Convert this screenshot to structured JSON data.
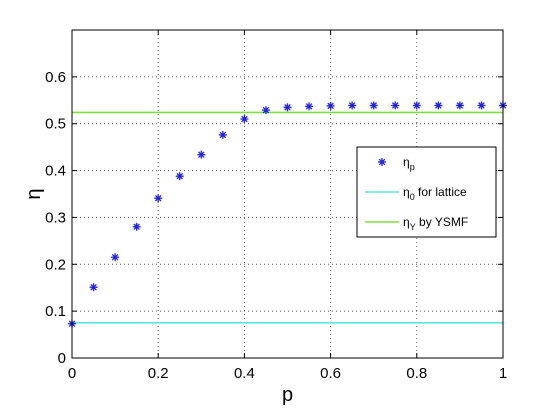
{
  "chart_data": {
    "type": "scatter",
    "xlabel": "p",
    "ylabel": "η",
    "xlim": [
      0,
      1
    ],
    "ylim": [
      0,
      0.7
    ],
    "xticks": [
      "0",
      "0.2",
      "0.4",
      "0.6",
      "0.8",
      "1"
    ],
    "yticks": [
      "0",
      "0.1",
      "0.2",
      "0.3",
      "0.4",
      "0.5",
      "0.6"
    ],
    "grid": true,
    "legend_position": "right",
    "series": [
      {
        "name_main": "η",
        "name_sub": "p",
        "name_rest": "",
        "style": "markers",
        "marker": "asterisk",
        "color": "#1f1fe6",
        "x": [
          0,
          0.05,
          0.1,
          0.15,
          0.2,
          0.25,
          0.3,
          0.35,
          0.4,
          0.45,
          0.5,
          0.55,
          0.6,
          0.65,
          0.7,
          0.75,
          0.8,
          0.85,
          0.9,
          0.95,
          1.0
        ],
        "y": [
          0.073,
          0.151,
          0.215,
          0.28,
          0.341,
          0.388,
          0.434,
          0.476,
          0.51,
          0.529,
          0.535,
          0.537,
          0.538,
          0.539,
          0.539,
          0.539,
          0.539,
          0.539,
          0.539,
          0.539,
          0.539
        ]
      },
      {
        "name_main": "η",
        "name_sub": "0",
        "name_rest": " for lattice",
        "style": "hline",
        "color": "#5ae6d8",
        "y": 0.075
      },
      {
        "name_main": "η",
        "name_sub": "Y",
        "name_rest": " by YSMF",
        "style": "hline",
        "color": "#7fe03a",
        "y": 0.524
      }
    ]
  }
}
